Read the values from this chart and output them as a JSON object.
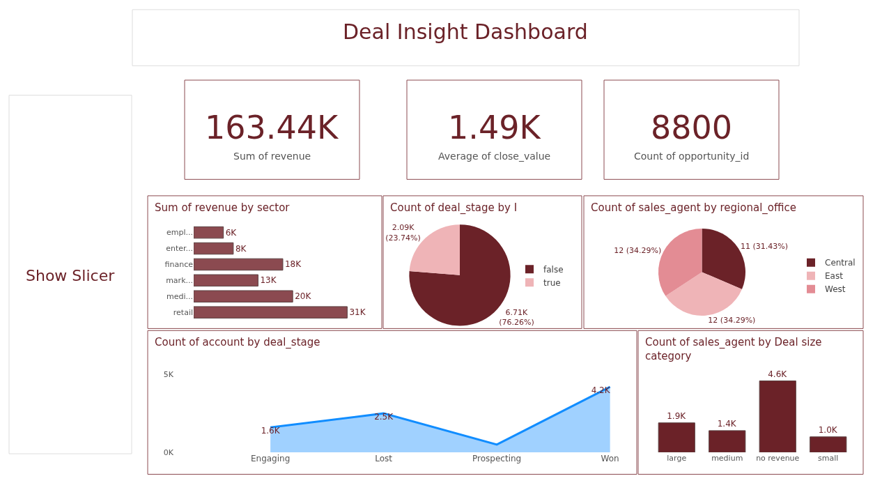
{
  "chart_data": [
    {
      "type": "other",
      "title": "Deal Insight Dashboard",
      "annotations": [
        "163.44K",
        "Sum of revenue",
        "1.49K",
        "Average of close_value",
        "8800",
        "Count of opportunity_id",
        "Show Slicer"
      ]
    },
    {
      "type": "bar",
      "orientation": "horizontal",
      "title": "Sum of revenue by sector",
      "categories": [
        "empl...",
        "enter...",
        "finance",
        "mark...",
        "medi...",
        "retail"
      ],
      "values": [
        6000,
        8000,
        18000,
        13000,
        20000,
        31000
      ],
      "value_labels": [
        "6K",
        "8K",
        "18K",
        "13K",
        "20K",
        "31K"
      ],
      "color": "#8b4a50",
      "tick_labels": "y"
    },
    {
      "type": "pie",
      "title": "Count of deal_stage by I",
      "categories": [
        "false",
        "true"
      ],
      "values": [
        6710,
        2090
      ],
      "value_labels": [
        "6.71K\n(76.26%)",
        "2.09K\n(23.74%)"
      ],
      "colors": [
        "#6b2228",
        "#efb4b7"
      ],
      "legend": "right"
    },
    {
      "type": "pie",
      "title": "Count of sales_agent by regional_office",
      "categories": [
        "Central",
        "East",
        "West"
      ],
      "values": [
        11,
        12,
        12
      ],
      "value_labels": [
        "11 (31.43%)",
        "12 (34.29%)",
        "12 (34.29%)"
      ],
      "colors": [
        "#6b2228",
        "#efb4b7",
        "#e38c94"
      ],
      "legend": "right"
    },
    {
      "type": "area",
      "title": "Count of account by deal_stage",
      "categories": [
        "Engaging",
        "Lost",
        "Prospecting",
        "Won"
      ],
      "values": [
        1600,
        2500,
        500,
        4200
      ],
      "value_labels": [
        "1.6K",
        "2.5K",
        null,
        "4.2K"
      ],
      "color": "#118dff",
      "ylim": [
        0,
        5000
      ],
      "yticks": [
        {
          "value": 0,
          "label": "0K"
        },
        {
          "value": 5000,
          "label": "5K"
        }
      ]
    },
    {
      "type": "bar",
      "title": "Count of sales_agent by Deal size\ncategory",
      "categories": [
        "large",
        "medium",
        "no revenue",
        "small"
      ],
      "values": [
        1900,
        1400,
        4600,
        1000
      ],
      "value_labels": [
        "1.9K",
        "1.4K",
        "4.6K",
        "1.0K"
      ],
      "color": "#6b2228",
      "tick_labels": "x"
    }
  ]
}
